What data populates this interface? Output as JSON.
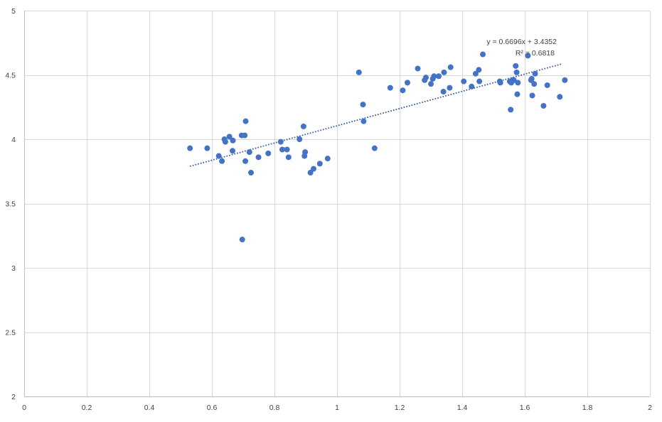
{
  "chart_data": {
    "type": "scatter",
    "title": "",
    "xlabel": "",
    "ylabel": "",
    "xlim": [
      0,
      2
    ],
    "ylim": [
      2,
      5
    ],
    "x_ticks": [
      0,
      0.2,
      0.4,
      0.6,
      0.8,
      1,
      1.2,
      1.4,
      1.6,
      1.8,
      2
    ],
    "x_tick_labels": [
      "0",
      "0.2",
      "0.4",
      "0.6",
      "0.8",
      "1",
      "1.2",
      "1.4",
      "1.6",
      "1.8",
      "2"
    ],
    "y_ticks": [
      2,
      2.5,
      3,
      3.5,
      4,
      4.5,
      5
    ],
    "y_tick_labels": [
      "2",
      "2.5",
      "3",
      "3.5",
      "4",
      "4.5",
      "5"
    ],
    "grid": true,
    "legend": "none",
    "point_color": "#4472c4",
    "trendline": {
      "slope": 0.6696,
      "intercept": 3.4352,
      "x_range": [
        0.53,
        1.72
      ],
      "color": "#2e5597",
      "equation_label": "y = 0.6696x + 3.4352",
      "r2_label": "R² = 0.6818"
    },
    "series": [
      {
        "points": [
          [
            0.53,
            3.93
          ],
          [
            0.585,
            3.93
          ],
          [
            0.622,
            3.87
          ],
          [
            0.632,
            3.83
          ],
          [
            0.64,
            4.0
          ],
          [
            0.643,
            3.98
          ],
          [
            0.656,
            4.02
          ],
          [
            0.666,
            3.91
          ],
          [
            0.667,
            3.99
          ],
          [
            0.695,
            4.03
          ],
          [
            0.697,
            3.22
          ],
          [
            0.705,
            4.03
          ],
          [
            0.707,
            3.83
          ],
          [
            0.708,
            4.14
          ],
          [
            0.72,
            3.9
          ],
          [
            0.725,
            3.74
          ],
          [
            0.749,
            3.86
          ],
          [
            0.78,
            3.89
          ],
          [
            0.82,
            3.98
          ],
          [
            0.825,
            3.92
          ],
          [
            0.84,
            3.92
          ],
          [
            0.845,
            3.86
          ],
          [
            0.88,
            4.0
          ],
          [
            0.893,
            4.1
          ],
          [
            0.896,
            3.87
          ],
          [
            0.898,
            3.9
          ],
          [
            0.915,
            3.74
          ],
          [
            0.925,
            3.77
          ],
          [
            0.945,
            3.81
          ],
          [
            0.97,
            3.85
          ],
          [
            1.07,
            4.52
          ],
          [
            1.083,
            4.27
          ],
          [
            1.085,
            4.14
          ],
          [
            1.12,
            3.93
          ],
          [
            1.17,
            4.4
          ],
          [
            1.21,
            4.38
          ],
          [
            1.225,
            4.44
          ],
          [
            1.258,
            4.55
          ],
          [
            1.28,
            4.46
          ],
          [
            1.284,
            4.48
          ],
          [
            1.3,
            4.43
          ],
          [
            1.306,
            4.47
          ],
          [
            1.31,
            4.49
          ],
          [
            1.325,
            4.49
          ],
          [
            1.34,
            4.37
          ],
          [
            1.342,
            4.52
          ],
          [
            1.36,
            4.4
          ],
          [
            1.363,
            4.56
          ],
          [
            1.405,
            4.45
          ],
          [
            1.43,
            4.41
          ],
          [
            1.443,
            4.51
          ],
          [
            1.453,
            4.54
          ],
          [
            1.455,
            4.45
          ],
          [
            1.466,
            4.66
          ],
          [
            1.52,
            4.45
          ],
          [
            1.522,
            4.44
          ],
          [
            1.552,
            4.45
          ],
          [
            1.555,
            4.23
          ],
          [
            1.557,
            4.44
          ],
          [
            1.561,
            4.46
          ],
          [
            1.565,
            4.46
          ],
          [
            1.571,
            4.57
          ],
          [
            1.574,
            4.52
          ],
          [
            1.576,
            4.35
          ],
          [
            1.578,
            4.44
          ],
          [
            1.61,
            4.65
          ],
          [
            1.62,
            4.46
          ],
          [
            1.622,
            4.47
          ],
          [
            1.624,
            4.34
          ],
          [
            1.63,
            4.43
          ],
          [
            1.633,
            4.51
          ],
          [
            1.66,
            4.26
          ],
          [
            1.672,
            4.42
          ],
          [
            1.712,
            4.33
          ],
          [
            1.728,
            4.46
          ]
        ]
      }
    ]
  }
}
